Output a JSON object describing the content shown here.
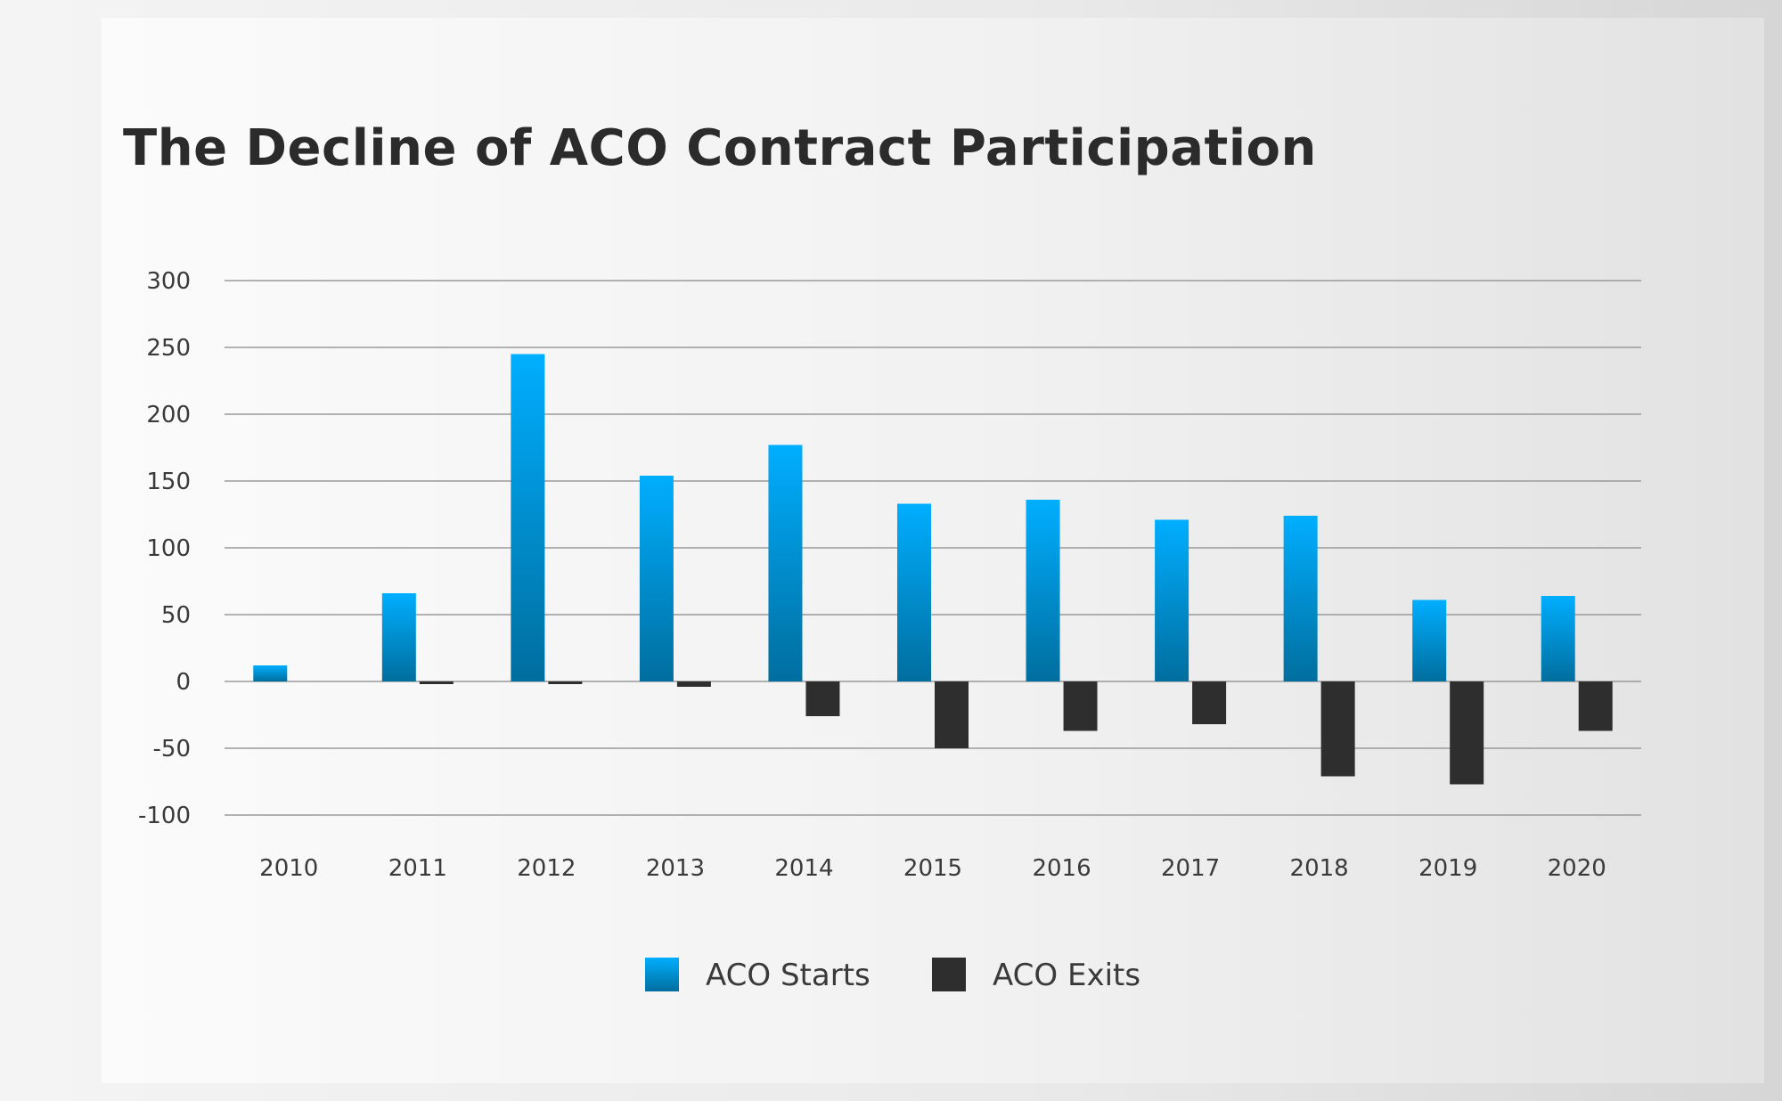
{
  "chart_data": {
    "type": "bar",
    "title": "The Decline of ACO Contract Participation",
    "xlabel": "",
    "ylabel": "",
    "categories": [
      "2010",
      "2011",
      "2012",
      "2013",
      "2014",
      "2015",
      "2016",
      "2017",
      "2018",
      "2019",
      "2020"
    ],
    "series": [
      {
        "name": "ACO Starts",
        "color": "#00a8ff",
        "values": [
          12,
          66,
          245,
          154,
          177,
          133,
          136,
          121,
          124,
          61,
          64
        ]
      },
      {
        "name": "ACO Exits",
        "color": "#2e2e2e",
        "values": [
          0,
          -2,
          -2,
          -4,
          -26,
          -50,
          -37,
          -32,
          -71,
          -77,
          -37
        ]
      }
    ],
    "ylim": [
      -100,
      300
    ],
    "yticks": [
      300,
      250,
      200,
      150,
      100,
      50,
      0,
      -50,
      -100
    ],
    "grid": true,
    "legend_position": "bottom-center"
  }
}
